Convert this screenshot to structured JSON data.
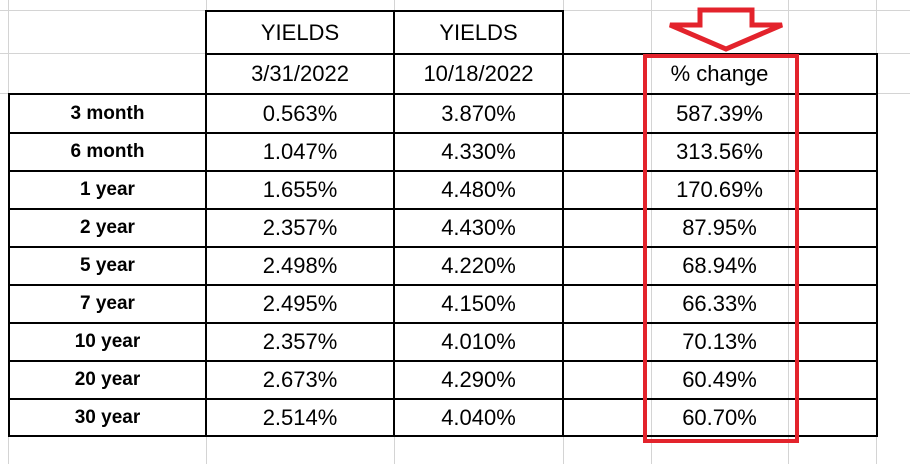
{
  "header": {
    "col1_title": "YIELDS",
    "col2_title": "YIELDS",
    "col1_date": "3/31/2022",
    "col2_date": "10/18/2022",
    "change_title": "% change"
  },
  "rows": [
    {
      "label": "3 month",
      "y1": "0.563%",
      "y2": "3.870%",
      "change": "587.39%"
    },
    {
      "label": "6 month",
      "y1": "1.047%",
      "y2": "4.330%",
      "change": "313.56%"
    },
    {
      "label": "1 year",
      "y1": "1.655%",
      "y2": "4.480%",
      "change": "170.69%"
    },
    {
      "label": "2 year",
      "y1": "2.357%",
      "y2": "4.430%",
      "change": "87.95%"
    },
    {
      "label": "5 year",
      "y1": "2.498%",
      "y2": "4.220%",
      "change": "68.94%"
    },
    {
      "label": "7 year",
      "y1": "2.495%",
      "y2": "4.150%",
      "change": "66.33%"
    },
    {
      "label": "10 year",
      "y1": "2.357%",
      "y2": "4.010%",
      "change": "70.13%"
    },
    {
      "label": "20 year",
      "y1": "2.673%",
      "y2": "4.290%",
      "change": "60.49%"
    },
    {
      "label": "30 year",
      "y1": "2.514%",
      "y2": "4.040%",
      "change": "60.70%"
    }
  ],
  "highlight": {
    "color": "#e3232c",
    "arrow_icon": "down-arrow-outline-icon"
  }
}
